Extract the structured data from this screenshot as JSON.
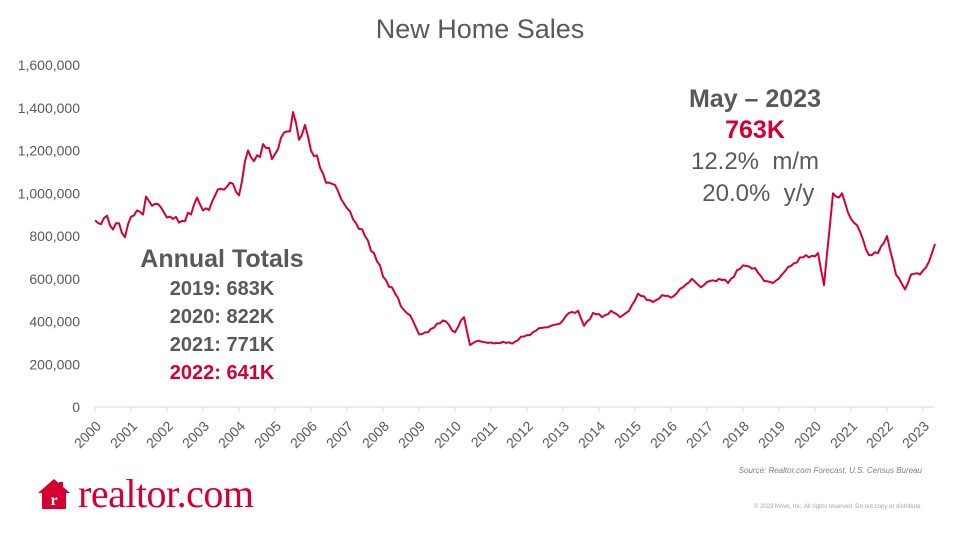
{
  "chart_data": {
    "type": "line",
    "title": "New Home Sales",
    "x_ticks": [
      "2000",
      "2001",
      "2002",
      "2003",
      "2004",
      "2005",
      "2006",
      "2007",
      "2008",
      "2009",
      "2010",
      "2011",
      "2012",
      "2013",
      "2014",
      "2015",
      "2016",
      "2017",
      "2018",
      "2019",
      "2020",
      "2021",
      "2022",
      "2023"
    ],
    "y_ticks": [
      "0",
      "200,000",
      "400,000",
      "600,000",
      "800,000",
      "1,000,000",
      "1,200,000",
      "1,400,000",
      "1,600,000"
    ],
    "ylim": [
      0,
      1600000
    ],
    "xlim": [
      "2000-01",
      "2023-05"
    ],
    "grid": false,
    "series": [
      {
        "color": "#d50032",
        "points": [
          [
            "2000-01",
            873000
          ],
          [
            "2000-03",
            855000
          ],
          [
            "2000-05",
            895000
          ],
          [
            "2000-07",
            830000
          ],
          [
            "2000-09",
            860000
          ],
          [
            "2000-11",
            795000
          ],
          [
            "2001-01",
            890000
          ],
          [
            "2001-03",
            920000
          ],
          [
            "2001-05",
            900000
          ],
          [
            "2001-06",
            985000
          ],
          [
            "2001-09",
            950000
          ],
          [
            "2001-12",
            910000
          ],
          [
            "2002-03",
            880000
          ],
          [
            "2002-06",
            870000
          ],
          [
            "2002-09",
            900000
          ],
          [
            "2002-11",
            980000
          ],
          [
            "2003-01",
            920000
          ],
          [
            "2003-04",
            960000
          ],
          [
            "2003-07",
            1020000
          ],
          [
            "2003-10",
            1050000
          ],
          [
            "2004-01",
            990000
          ],
          [
            "2004-03",
            1150000
          ],
          [
            "2004-04",
            1200000
          ],
          [
            "2004-06",
            1150000
          ],
          [
            "2004-09",
            1230000
          ],
          [
            "2004-12",
            1160000
          ],
          [
            "2005-03",
            1260000
          ],
          [
            "2005-06",
            1290000
          ],
          [
            "2005-07",
            1380000
          ],
          [
            "2005-09",
            1250000
          ],
          [
            "2005-11",
            1320000
          ],
          [
            "2006-01",
            1200000
          ],
          [
            "2006-04",
            1120000
          ],
          [
            "2006-07",
            1050000
          ],
          [
            "2006-10",
            1010000
          ],
          [
            "2007-01",
            930000
          ],
          [
            "2007-04",
            860000
          ],
          [
            "2007-07",
            800000
          ],
          [
            "2007-10",
            720000
          ],
          [
            "2008-01",
            610000
          ],
          [
            "2008-04",
            560000
          ],
          [
            "2008-07",
            470000
          ],
          [
            "2008-10",
            430000
          ],
          [
            "2009-01",
            340000
          ],
          [
            "2009-04",
            350000
          ],
          [
            "2009-07",
            390000
          ],
          [
            "2009-10",
            400000
          ],
          [
            "2010-01",
            350000
          ],
          [
            "2010-04",
            420000
          ],
          [
            "2010-06",
            290000
          ],
          [
            "2010-09",
            310000
          ],
          [
            "2010-12",
            300000
          ],
          [
            "2011-03",
            300000
          ],
          [
            "2011-06",
            300000
          ],
          [
            "2011-09",
            305000
          ],
          [
            "2011-12",
            330000
          ],
          [
            "2012-03",
            350000
          ],
          [
            "2012-06",
            370000
          ],
          [
            "2012-09",
            380000
          ],
          [
            "2012-12",
            390000
          ],
          [
            "2013-03",
            440000
          ],
          [
            "2013-06",
            450000
          ],
          [
            "2013-08",
            380000
          ],
          [
            "2013-11",
            440000
          ],
          [
            "2014-02",
            420000
          ],
          [
            "2014-05",
            450000
          ],
          [
            "2014-08",
            420000
          ],
          [
            "2014-11",
            450000
          ],
          [
            "2015-02",
            530000
          ],
          [
            "2015-05",
            500000
          ],
          [
            "2015-08",
            500000
          ],
          [
            "2015-11",
            520000
          ],
          [
            "2016-02",
            520000
          ],
          [
            "2016-05",
            560000
          ],
          [
            "2016-08",
            600000
          ],
          [
            "2016-11",
            560000
          ],
          [
            "2017-02",
            590000
          ],
          [
            "2017-05",
            600000
          ],
          [
            "2017-08",
            580000
          ],
          [
            "2017-11",
            640000
          ],
          [
            "2018-02",
            660000
          ],
          [
            "2018-05",
            650000
          ],
          [
            "2018-08",
            590000
          ],
          [
            "2018-11",
            580000
          ],
          [
            "2019-02",
            620000
          ],
          [
            "2019-05",
            660000
          ],
          [
            "2019-08",
            700000
          ],
          [
            "2019-11",
            700000
          ],
          [
            "2020-02",
            720000
          ],
          [
            "2020-04",
            570000
          ],
          [
            "2020-07",
            1000000
          ],
          [
            "2020-09",
            980000
          ],
          [
            "2020-10",
            1000000
          ],
          [
            "2021-01",
            880000
          ],
          [
            "2021-04",
            820000
          ],
          [
            "2021-07",
            710000
          ],
          [
            "2021-10",
            720000
          ],
          [
            "2022-01",
            800000
          ],
          [
            "2022-04",
            620000
          ],
          [
            "2022-07",
            550000
          ],
          [
            "2022-09",
            620000
          ],
          [
            "2022-12",
            620000
          ],
          [
            "2023-03",
            680000
          ],
          [
            "2023-05",
            763000
          ]
        ]
      }
    ]
  },
  "callout": {
    "heading": "May – 2023",
    "value": "763K",
    "mm": "12.2%  m/m",
    "yy": " 20.0%  y/y"
  },
  "annual_totals": {
    "heading": "Annual Totals",
    "rows": [
      "2019: 683K",
      "2020: 822K",
      "2021: 771K",
      "2022: 641K"
    ]
  },
  "source": "Source: Realtor.com  Forecast,  U.S. Census  Bureau",
  "copyright": "© 2023 Move, Inc. All rights reserved. Do not copy or distribute.",
  "logo": {
    "text": "realtor.com",
    "icon": "house-icon",
    "icon_letter": "r",
    "color": "#d50032"
  },
  "colors": {
    "line": "#d50032",
    "text": "#595959",
    "axis": "#d9d9d9"
  }
}
